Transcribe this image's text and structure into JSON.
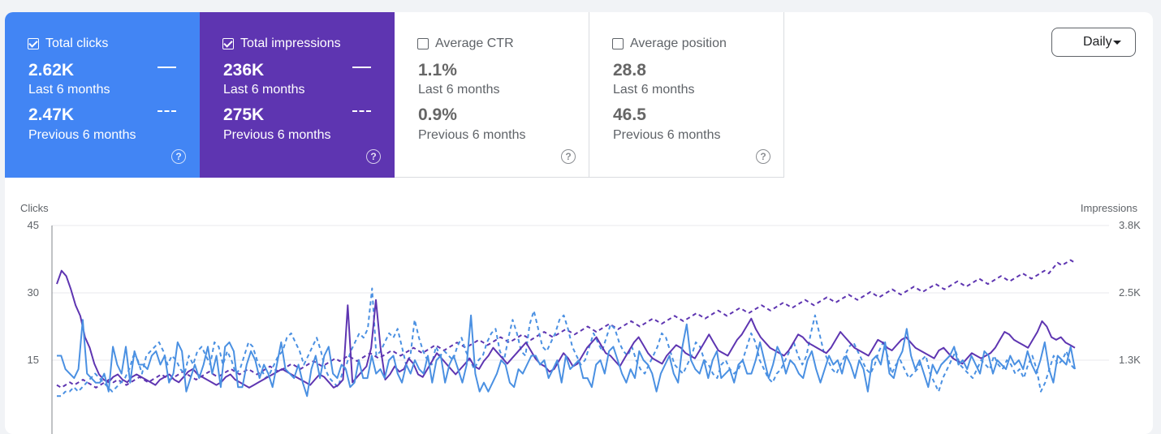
{
  "metrics": [
    {
      "label": "Total clicks",
      "checked": true,
      "value_last": "2.62K",
      "label_last": "Last 6 months",
      "value_prev": "2.47K",
      "label_prev": "Previous 6 months",
      "color": "#4285f4"
    },
    {
      "label": "Total impressions",
      "checked": true,
      "value_last": "236K",
      "label_last": "Last 6 months",
      "value_prev": "275K",
      "label_prev": "Previous 6 months",
      "color": "#5e35b1"
    },
    {
      "label": "Average CTR",
      "checked": false,
      "value_last": "1.1%",
      "label_last": "Last 6 months",
      "value_prev": "0.9%",
      "label_prev": "Previous 6 months"
    },
    {
      "label": "Average position",
      "checked": false,
      "value_last": "28.8",
      "label_last": "Last 6 months",
      "value_prev": "46.5",
      "label_prev": "Previous 6 months"
    }
  ],
  "help_glyph": "?",
  "granularity": {
    "selected": "Daily"
  },
  "chart_data": {
    "type": "line",
    "left_axis": {
      "label": "Clicks",
      "ticks": [
        "45",
        "30",
        "15"
      ],
      "tick_values": [
        45,
        30,
        15
      ],
      "range": [
        0,
        45
      ]
    },
    "right_axis": {
      "label": "Impressions",
      "ticks": [
        "3.8K",
        "2.5K",
        "1.3K"
      ],
      "tick_values": [
        3800,
        2500,
        1300
      ],
      "range": [
        0,
        3800
      ]
    },
    "grid": true,
    "series": [
      {
        "metric": "clicks",
        "period": "last",
        "style": "solid",
        "color": "#4a90e2",
        "axis": "left",
        "values": [
          16,
          16,
          13,
          12,
          11,
          13,
          24,
          12,
          11,
          10,
          10,
          12,
          8,
          18,
          14,
          12,
          18,
          10,
          17,
          14,
          14,
          13,
          16,
          17,
          14,
          16,
          10,
          12,
          19,
          17,
          8,
          11,
          14,
          11,
          14,
          18,
          12,
          16,
          9,
          18,
          19,
          17,
          9,
          9,
          14,
          17,
          15,
          11,
          14,
          12,
          9,
          14,
          19,
          13,
          12,
          11,
          14,
          10,
          7,
          13,
          16,
          11,
          16,
          18,
          12,
          11,
          14,
          13,
          9,
          10,
          15,
          11,
          11,
          16,
          12,
          13,
          11,
          15,
          16,
          12,
          10,
          14,
          12,
          15,
          13,
          12,
          16,
          10,
          15,
          16,
          10,
          14,
          16,
          13,
          10,
          14,
          25,
          12,
          8,
          10,
          8,
          10,
          12,
          15,
          14,
          10,
          9,
          13,
          12,
          14,
          16,
          16,
          14,
          15,
          11,
          13,
          15,
          10,
          16,
          13,
          14,
          15,
          11,
          11,
          9,
          14,
          15,
          12,
          17,
          18,
          15,
          12,
          10,
          13,
          11,
          17,
          15,
          14,
          12,
          8,
          12,
          14,
          16,
          12,
          10,
          18,
          23,
          15,
          13,
          12,
          15,
          11,
          15,
          17,
          11,
          12,
          13,
          10,
          14,
          15,
          12,
          12,
          15,
          19,
          15,
          11,
          14,
          18,
          16,
          12,
          15,
          14,
          12,
          11,
          15,
          17,
          13,
          10,
          13,
          16,
          14,
          15,
          12,
          16,
          14,
          11,
          15,
          13,
          8,
          15,
          16,
          14,
          19,
          12,
          11,
          15,
          17,
          22,
          16,
          13,
          15,
          12,
          9,
          14,
          12,
          14,
          15,
          16,
          18,
          14,
          15,
          13,
          16,
          14,
          12,
          17,
          16,
          12,
          15,
          14,
          13,
          16,
          14,
          15,
          13,
          17,
          14,
          12,
          15,
          19,
          13,
          10,
          16,
          15,
          14,
          18,
          13
        ]
      },
      {
        "metric": "clicks",
        "period": "previous",
        "style": "dashed",
        "color": "#4a90e2",
        "axis": "left",
        "values": [
          7,
          7,
          8,
          8,
          9,
          8,
          9,
          10,
          11,
          12,
          11,
          10,
          9,
          8,
          9,
          10,
          11,
          13,
          16,
          15,
          12,
          16,
          17,
          18,
          19,
          17,
          14,
          16,
          15,
          13,
          12,
          16,
          14,
          17,
          18,
          16,
          14,
          19,
          18,
          14,
          17,
          15,
          12,
          13,
          16,
          19,
          18,
          15,
          13,
          11,
          12,
          14,
          16,
          17,
          20,
          21,
          19,
          17,
          14,
          16,
          18,
          20,
          17,
          13,
          11,
          10,
          9,
          12,
          14,
          17,
          19,
          21,
          20,
          22,
          31,
          16,
          17,
          19,
          21,
          20,
          22,
          18,
          14,
          16,
          24,
          20,
          17,
          15,
          14,
          18,
          16,
          17,
          16,
          15,
          18,
          20,
          17,
          15,
          13,
          15,
          16,
          19,
          21,
          22,
          17,
          15,
          20,
          24,
          21,
          17,
          16,
          23,
          26,
          22,
          18,
          17,
          19,
          21,
          24,
          25,
          22,
          18,
          16,
          14,
          15,
          18,
          21,
          19,
          17,
          20,
          23,
          22,
          19,
          17,
          16,
          18,
          15,
          13,
          12,
          14,
          16,
          18,
          21,
          20,
          17,
          14,
          13,
          12,
          14,
          16,
          19,
          18,
          15,
          14,
          12,
          11,
          14,
          15,
          13,
          12,
          13,
          15,
          18,
          21,
          19,
          15,
          13,
          11,
          10,
          12,
          13,
          15,
          17,
          19,
          16,
          14,
          16,
          21,
          25,
          21,
          17,
          15,
          13,
          12,
          14,
          16,
          18,
          19,
          17,
          15,
          13,
          12,
          14,
          17,
          19,
          16,
          12,
          14,
          15,
          13,
          11,
          12,
          13,
          15,
          16,
          12,
          10,
          8,
          11,
          13,
          15,
          17,
          14,
          13,
          12,
          11,
          13,
          15,
          14,
          13,
          16,
          14,
          13,
          15,
          14,
          12,
          13,
          11,
          14,
          16,
          13,
          8,
          10,
          13,
          16,
          14,
          15,
          17,
          14,
          13
        ]
      },
      {
        "metric": "impressions",
        "period": "last",
        "style": "solid",
        "color": "#5e35b1",
        "axis": "right",
        "values": [
          2700,
          2950,
          2850,
          2600,
          2300,
          2100,
          1700,
          1500,
          1200,
          1000,
          900,
          850,
          950,
          1000,
          900,
          850,
          950,
          1000,
          950,
          900,
          850,
          800,
          900,
          950,
          1000,
          900,
          850,
          950,
          1050,
          1100,
          1000,
          950,
          900,
          850,
          800,
          850,
          950,
          1000,
          900,
          850,
          800,
          750,
          800,
          850,
          900,
          950,
          1000,
          1050,
          1100,
          1050,
          1000,
          950,
          900,
          850,
          800,
          900,
          1000,
          950,
          850,
          750,
          800,
          900,
          2300,
          850,
          950,
          1050,
          1150,
          1500,
          2400,
          1500,
          900,
          1000,
          1150,
          1050,
          1100,
          1300,
          1200,
          1000,
          950,
          1100,
          1250,
          1400,
          1300,
          1200,
          1100,
          1000,
          1100,
          1200,
          1300,
          1150,
          1100,
          1250,
          1350,
          1500,
          1400,
          1300,
          1200,
          1300,
          1400,
          1500,
          1600,
          1450,
          1300,
          1200,
          1150,
          1050,
          1100,
          1250,
          1400,
          1300,
          1150,
          1200,
          1350,
          1500,
          1600,
          1700,
          1550,
          1400,
          1350,
          1250,
          1150,
          1300,
          1450,
          1600,
          1700,
          1550,
          1400,
          1300,
          1250,
          1200,
          1350,
          1450,
          1550,
          1500,
          1400,
          1350,
          1300,
          1450,
          1600,
          1750,
          1600,
          1450,
          1400,
          1350,
          1500,
          1650,
          1750,
          1900,
          2050,
          1850,
          1700,
          1600,
          1500,
          1450,
          1400,
          1350,
          1450,
          1600,
          1750,
          1700,
          1600,
          1550,
          1500,
          1450,
          1400,
          1500,
          1650,
          1800,
          1700,
          1600,
          1500,
          1450,
          1400,
          1350,
          1500,
          1650,
          1600,
          1500,
          1450,
          1550,
          1650,
          1700,
          1600,
          1500,
          1450,
          1400,
          1350,
          1300,
          1450,
          1500,
          1400,
          1300,
          1250,
          1200,
          1300,
          1400,
          1350,
          1300,
          1350,
          1400,
          1500,
          1650,
          1800,
          1750,
          1650,
          1600,
          1550,
          1500,
          1650,
          1800,
          2000,
          1900,
          1700,
          1650,
          1700,
          1600,
          1550,
          1500
        ]
      },
      {
        "metric": "impressions",
        "period": "previous",
        "style": "dashed",
        "color": "#5e35b1",
        "axis": "right",
        "values": [
          800,
          750,
          800,
          850,
          800,
          850,
          900,
          850,
          800,
          750,
          800,
          850,
          900,
          850,
          900,
          850,
          800,
          850,
          900,
          950,
          900,
          850,
          900,
          950,
          1000,
          950,
          900,
          950,
          1000,
          1050,
          1000,
          950,
          900,
          950,
          1000,
          1050,
          1000,
          950,
          1000,
          1050,
          1100,
          1050,
          1000,
          1050,
          1100,
          1050,
          1000,
          1050,
          1100,
          1150,
          1100,
          1050,
          1100,
          1150,
          1200,
          1150,
          1100,
          1150,
          1200,
          1250,
          1200,
          1150,
          1200,
          1250,
          1300,
          1250,
          1300,
          1350,
          1300,
          1250,
          1300,
          1350,
          1400,
          1350,
          1300,
          1350,
          1400,
          1450,
          1400,
          1350,
          1400,
          1450,
          1500,
          1450,
          1400,
          1450,
          1500,
          1550,
          1500,
          1450,
          1500,
          1550,
          1600,
          1550,
          1500,
          1550,
          1600,
          1650,
          1600,
          1550,
          1600,
          1650,
          1700,
          1650,
          1600,
          1650,
          1700,
          1750,
          1700,
          1650,
          1700,
          1750,
          1800,
          1750,
          1700,
          1750,
          1800,
          1850,
          1800,
          1750,
          1800,
          1850,
          1900,
          1850,
          1800,
          1850,
          1900,
          1950,
          1900,
          1850,
          1900,
          1950,
          2000,
          1950,
          1900,
          1950,
          2000,
          2050,
          2000,
          1950,
          2000,
          2050,
          2100,
          2050,
          2000,
          2050,
          2100,
          2150,
          2100,
          2050,
          2100,
          2150,
          2200,
          2150,
          2100,
          2150,
          2200,
          2250,
          2200,
          2150,
          2200,
          2250,
          2300,
          2250,
          2200,
          2250,
          2300,
          2350,
          2300,
          2250,
          2300,
          2350,
          2400,
          2350,
          2300,
          2350,
          2400,
          2450,
          2400,
          2350,
          2400,
          2450,
          2500,
          2450,
          2400,
          2450,
          2500,
          2550,
          2500,
          2450,
          2500,
          2550,
          2600,
          2550,
          2500,
          2550,
          2600,
          2650,
          2600,
          2550,
          2600,
          2650,
          2700,
          2650,
          2600,
          2650,
          2700,
          2750,
          2700,
          2650,
          2700,
          2750,
          2800,
          2750,
          2700,
          2750,
          2800,
          2850,
          2800,
          2750,
          2800,
          2850,
          2900,
          2850,
          2800,
          2850,
          2900,
          2950,
          2900,
          3000,
          3100,
          3050,
          3100,
          3150,
          3100
        ]
      }
    ]
  }
}
